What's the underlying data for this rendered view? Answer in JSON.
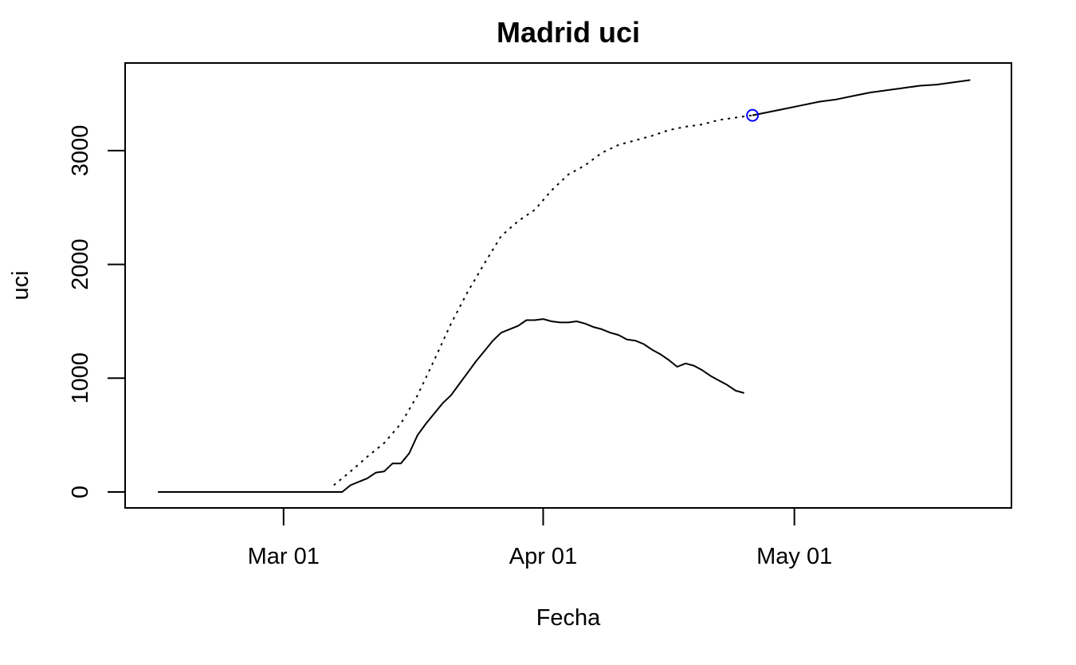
{
  "chart_data": {
    "type": "line",
    "title": "Madrid uci",
    "xlabel": "Fecha",
    "ylabel": "uci",
    "x_ticks": [
      "Mar 01",
      "Apr 01",
      "May 01"
    ],
    "y_ticks": [
      "0",
      "1000",
      "2000",
      "3000"
    ],
    "ylim": [
      -140,
      3770
    ],
    "x_range": [
      "2020-02-15",
      "2020-05-23"
    ],
    "series": [
      {
        "style": "solid",
        "x": [
          "2020-02-15",
          "2020-02-16",
          "2020-02-17",
          "2020-02-18",
          "2020-02-19",
          "2020-02-20",
          "2020-02-21",
          "2020-02-22",
          "2020-02-23",
          "2020-02-24",
          "2020-02-25",
          "2020-02-26",
          "2020-02-27",
          "2020-02-28",
          "2020-02-29",
          "2020-03-01",
          "2020-03-02",
          "2020-03-03",
          "2020-03-04",
          "2020-03-05",
          "2020-03-06",
          "2020-03-07",
          "2020-03-08",
          "2020-03-09",
          "2020-03-10",
          "2020-03-11",
          "2020-03-12",
          "2020-03-13",
          "2020-03-14",
          "2020-03-15",
          "2020-03-16",
          "2020-03-17",
          "2020-03-18",
          "2020-03-19",
          "2020-03-20",
          "2020-03-21",
          "2020-03-22",
          "2020-03-23",
          "2020-03-24",
          "2020-03-25",
          "2020-03-26",
          "2020-03-27",
          "2020-03-28",
          "2020-03-29",
          "2020-03-30",
          "2020-03-31",
          "2020-04-01",
          "2020-04-02",
          "2020-04-03",
          "2020-04-04",
          "2020-04-05",
          "2020-04-06",
          "2020-04-07",
          "2020-04-08",
          "2020-04-09",
          "2020-04-10",
          "2020-04-11",
          "2020-04-12",
          "2020-04-13",
          "2020-04-14",
          "2020-04-15",
          "2020-04-16",
          "2020-04-17",
          "2020-04-18",
          "2020-04-19",
          "2020-04-20",
          "2020-04-21",
          "2020-04-22",
          "2020-04-23",
          "2020-04-24",
          "2020-04-25"
        ],
        "values": [
          0,
          0,
          0,
          0,
          0,
          0,
          0,
          0,
          0,
          0,
          0,
          0,
          0,
          0,
          0,
          0,
          0,
          0,
          0,
          0,
          0,
          0,
          0,
          60,
          90,
          120,
          170,
          180,
          250,
          250,
          340,
          500,
          600,
          690,
          780,
          850,
          950,
          1050,
          1150,
          1240,
          1330,
          1400,
          1430,
          1460,
          1510,
          1510,
          1520,
          1500,
          1490,
          1490,
          1500,
          1480,
          1450,
          1430,
          1400,
          1380,
          1340,
          1330,
          1300,
          1250,
          1210,
          1160,
          1100,
          1130,
          1110,
          1070,
          1020,
          980,
          940,
          890,
          870
        ]
      },
      {
        "style": "dotted",
        "x": [
          "2020-03-07",
          "2020-03-09",
          "2020-03-11",
          "2020-03-13",
          "2020-03-15",
          "2020-03-17",
          "2020-03-19",
          "2020-03-21",
          "2020-03-23",
          "2020-03-25",
          "2020-03-27",
          "2020-03-29",
          "2020-03-31",
          "2020-04-02",
          "2020-04-04",
          "2020-04-06",
          "2020-04-08",
          "2020-04-10",
          "2020-04-12",
          "2020-04-14",
          "2020-04-16",
          "2020-04-18",
          "2020-04-20",
          "2020-04-22",
          "2020-04-24",
          "2020-04-26"
        ],
        "values": [
          60,
          180,
          310,
          430,
          600,
          850,
          1160,
          1480,
          1760,
          2010,
          2250,
          2380,
          2480,
          2650,
          2790,
          2870,
          2980,
          3050,
          3090,
          3130,
          3180,
          3210,
          3230,
          3270,
          3290,
          3310
        ]
      },
      {
        "style": "solid",
        "x": [
          "2020-04-26",
          "2020-04-28",
          "2020-04-30",
          "2020-05-02",
          "2020-05-04",
          "2020-05-06",
          "2020-05-08",
          "2020-05-10",
          "2020-05-12",
          "2020-05-14",
          "2020-05-16",
          "2020-05-18",
          "2020-05-20",
          "2020-05-22"
        ],
        "values": [
          3310,
          3340,
          3370,
          3400,
          3430,
          3450,
          3480,
          3510,
          3530,
          3550,
          3570,
          3580,
          3600,
          3620
        ]
      }
    ],
    "highlight_point": {
      "x": "2020-04-26",
      "value": 3310,
      "color": "#0000ff"
    },
    "grid": false,
    "line_color": "#000000"
  }
}
